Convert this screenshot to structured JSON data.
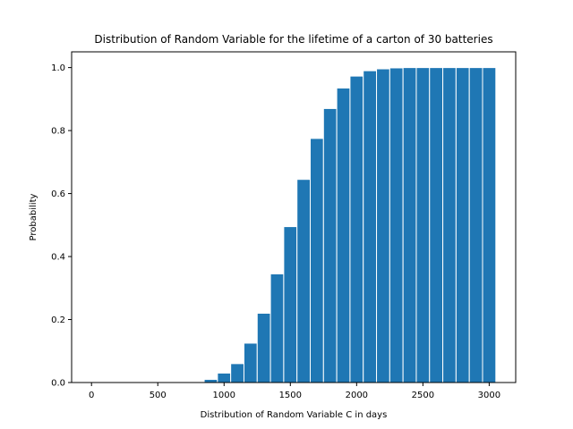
{
  "chart_data": {
    "type": "bar",
    "title": "Distribution of Random Variable for the lifetime of a carton of 30 batteries",
    "xlabel": "Distribution of Random Variable C in days",
    "ylabel": "Probability",
    "xlim": [
      -150,
      3200
    ],
    "ylim": [
      0,
      1.05
    ],
    "xticks": [
      0,
      500,
      1000,
      1500,
      2000,
      2500,
      3000
    ],
    "xtick_labels": [
      "0",
      "500",
      "1000",
      "1500",
      "2000",
      "2500",
      "3000"
    ],
    "yticks": [
      0.0,
      0.2,
      0.4,
      0.6,
      0.8,
      1.0
    ],
    "ytick_labels": [
      "0.0",
      "0.2",
      "0.4",
      "0.6",
      "0.8",
      "1.0"
    ],
    "bin_width": 100,
    "x": [
      900,
      1000,
      1100,
      1200,
      1300,
      1400,
      1500,
      1600,
      1700,
      1800,
      1900,
      2000,
      2100,
      2200,
      2300,
      2400,
      2500,
      2600,
      2700,
      2800,
      2900,
      3000
    ],
    "values": [
      0.01,
      0.03,
      0.06,
      0.125,
      0.22,
      0.345,
      0.495,
      0.645,
      0.775,
      0.87,
      0.935,
      0.973,
      0.99,
      0.996,
      0.999,
      1.0,
      1.0,
      1.0,
      1.0,
      1.0,
      1.0,
      1.0
    ],
    "bar_color": "#1f77b4",
    "edge_color": "#ffffff",
    "grid": false,
    "legend": "none"
  }
}
